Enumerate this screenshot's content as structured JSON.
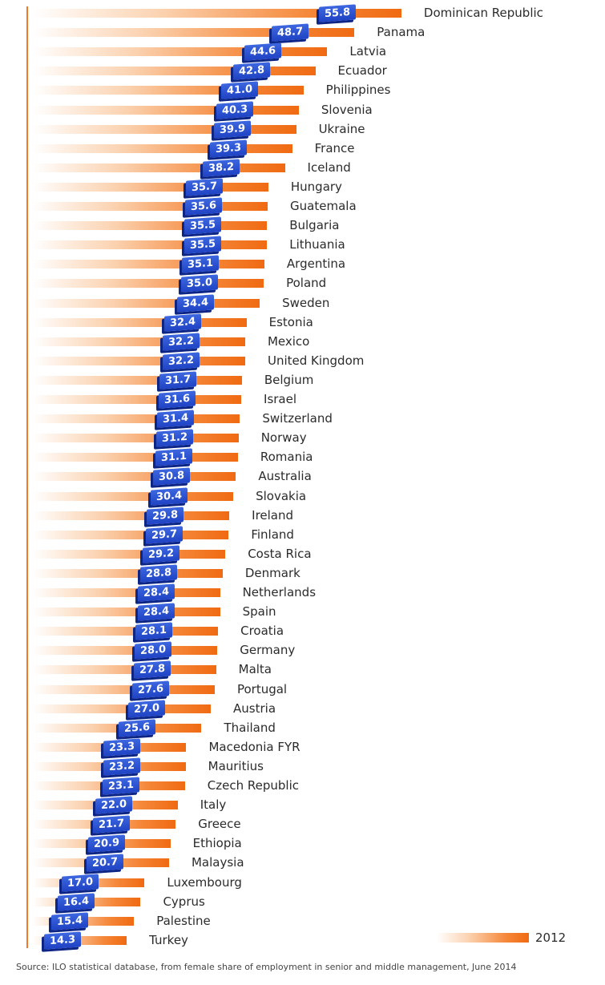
{
  "chart_data": {
    "type": "bar",
    "orientation": "horizontal",
    "categories": [
      "Dominican Republic",
      "Panama",
      "Latvia",
      "Ecuador",
      "Philippines",
      "Slovenia",
      "Ukraine",
      "France",
      "Iceland",
      "Hungary",
      "Guatemala",
      "Bulgaria",
      "Lithuania",
      "Argentina",
      "Poland",
      "Sweden",
      "Estonia",
      "Mexico",
      "United Kingdom",
      "Belgium",
      "Israel",
      "Switzerland",
      "Norway",
      "Romania",
      "Australia",
      "Slovakia",
      "Ireland",
      "Finland",
      "Costa Rica",
      "Denmark",
      "Netherlands",
      "Spain",
      "Croatia",
      "Germany",
      "Malta",
      "Portugal",
      "Austria",
      "Thailand",
      "Macedonia FYR",
      "Mauritius",
      "Czech Republic",
      "Italy",
      "Greece",
      "Ethiopia",
      "Malaysia",
      "Luxembourg",
      "Cyprus",
      "Palestine",
      "Turkey"
    ],
    "value_labels": [
      "55.8",
      "48.7",
      "44.6",
      "42.8",
      "41.0",
      "40.3",
      "39.9",
      "39.3",
      "38.2",
      "35.7",
      "35.6",
      "35.5",
      "35.5",
      "35.1",
      "35.0",
      "34.4",
      "32.4",
      "32.2",
      "32.2",
      "31.7",
      "31.6",
      "31.4",
      "31.2",
      "31.1",
      "30.8",
      "30.4",
      "29.8",
      "29.7",
      "29.2",
      "28.8",
      "28.4",
      "28.4",
      "28.1",
      "28.0",
      "27.8",
      "27.6",
      "27.0",
      "25.6",
      "23.3",
      "23.2",
      "23.1",
      "22.0",
      "21.7",
      "20.9",
      "20.7",
      "17.0",
      "16.4",
      "15.4",
      "14.3"
    ],
    "series": [
      {
        "name": "2012",
        "values": [
          55.8,
          48.7,
          44.6,
          42.8,
          41.0,
          40.3,
          39.9,
          39.3,
          38.2,
          35.7,
          35.6,
          35.5,
          35.5,
          35.1,
          35.0,
          34.4,
          32.4,
          32.2,
          32.2,
          31.7,
          31.6,
          31.4,
          31.2,
          31.1,
          30.8,
          30.4,
          29.8,
          29.7,
          29.2,
          28.8,
          28.4,
          28.4,
          28.1,
          28.0,
          27.8,
          27.6,
          27.0,
          25.6,
          23.3,
          23.2,
          23.1,
          22.0,
          21.7,
          20.9,
          20.7,
          17.0,
          16.4,
          15.4,
          14.3
        ]
      }
    ],
    "legend_position": "bottom-right",
    "grid": false,
    "bar_color": "#f06a12",
    "label_color": "#1f43c4"
  },
  "legend": {
    "label": "2012"
  },
  "source": "Source: ILO statistical database, from female share of employment in senior and middle management, June 2014"
}
